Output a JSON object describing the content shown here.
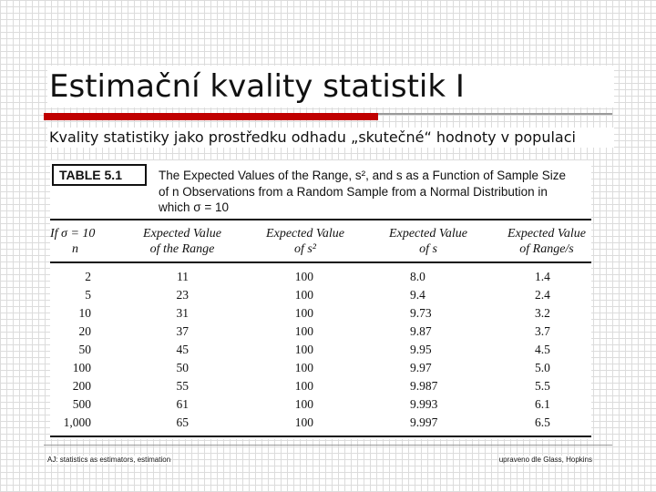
{
  "slide": {
    "title": "Estimační kvality statistik I",
    "subtitle": "Kvality statistiky jako prostředku odhadu „skutečné“ hodnoty v populaci"
  },
  "table": {
    "label": "TABLE 5.1",
    "caption_line1": "The Expected Values of the Range, s², and s as a Function of Sample Size",
    "caption_line2": "of n Observations from a Random Sample from a Normal Distribution in",
    "caption_line3": "which σ = 10",
    "headers": [
      {
        "line1": "If σ = 10",
        "line2": "n"
      },
      {
        "line1": "Expected Value",
        "line2": "of the Range"
      },
      {
        "line1": "Expected Value",
        "line2": "of s²"
      },
      {
        "line1": "Expected Value",
        "line2": "of s"
      },
      {
        "line1": "Expected Value",
        "line2": "of Range/s"
      }
    ],
    "rows": [
      {
        "n": "2",
        "range": "11",
        "s2": "100",
        "s": "8.0",
        "range_s": "1.4"
      },
      {
        "n": "5",
        "range": "23",
        "s2": "100",
        "s": "9.4",
        "range_s": "2.4"
      },
      {
        "n": "10",
        "range": "31",
        "s2": "100",
        "s": "9.73",
        "range_s": "3.2"
      },
      {
        "n": "20",
        "range": "37",
        "s2": "100",
        "s": "9.87",
        "range_s": "3.7"
      },
      {
        "n": "50",
        "range": "45",
        "s2": "100",
        "s": "9.95",
        "range_s": "4.5"
      },
      {
        "n": "100",
        "range": "50",
        "s2": "100",
        "s": "9.97",
        "range_s": "5.0"
      },
      {
        "n": "200",
        "range": "55",
        "s2": "100",
        "s": "9.987",
        "range_s": "5.5"
      },
      {
        "n": "500",
        "range": "61",
        "s2": "100",
        "s": "9.993",
        "range_s": "6.1"
      },
      {
        "n": "1,000",
        "range": "65",
        "s2": "100",
        "s": "9.997",
        "range_s": "6.5"
      }
    ]
  },
  "footer": {
    "left": "AJ: statistics as estimators, estimation",
    "right": "upraveno dle Glass, Hopkins"
  }
}
